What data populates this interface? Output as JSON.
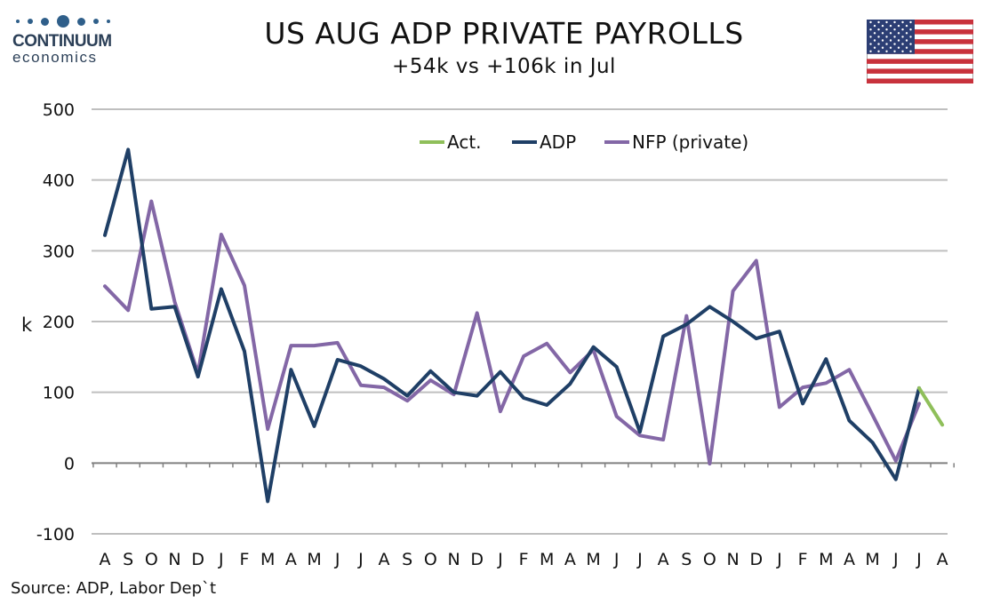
{
  "logo": {
    "line1": "CONTINUUM",
    "line2": "economics"
  },
  "title": "US AUG ADP PRIVATE PAYROLLS",
  "subtitle": "+54k vs +106k in Jul",
  "source": "Source: ADP, Labor Dep`t",
  "colors": {
    "act": "#8fbf5a",
    "adp": "#1f3f66",
    "nfp": "#8367a6",
    "grid": "#bfbfbf",
    "axis": "#808080"
  },
  "chart_data": {
    "type": "line",
    "ylabel": "k",
    "ylim": [
      -100,
      500
    ],
    "yticks": [
      -100,
      0,
      100,
      200,
      300,
      400,
      500
    ],
    "grid": true,
    "legend_position": "top-right",
    "categories": [
      "A",
      "S",
      "O",
      "N",
      "D",
      "J",
      "F",
      "M",
      "A",
      "M",
      "J",
      "J",
      "A",
      "S",
      "O",
      "N",
      "D",
      "J",
      "F",
      "M",
      "A",
      "M",
      "J",
      "J",
      "A",
      "S",
      "O",
      "N",
      "D",
      "J",
      "F",
      "M",
      "A",
      "M",
      "J",
      "J",
      "A"
    ],
    "series": [
      {
        "name": "Act.",
        "color_key": "act",
        "values": [
          null,
          null,
          null,
          null,
          null,
          null,
          null,
          null,
          null,
          null,
          null,
          null,
          null,
          null,
          null,
          null,
          null,
          null,
          null,
          null,
          null,
          null,
          null,
          null,
          null,
          null,
          null,
          null,
          null,
          null,
          null,
          null,
          null,
          null,
          null,
          106,
          54
        ]
      },
      {
        "name": "ADP",
        "color_key": "adp",
        "values": [
          322,
          443,
          218,
          221,
          122,
          246,
          158,
          -54,
          132,
          52,
          146,
          137,
          119,
          95,
          130,
          100,
          95,
          129,
          92,
          82,
          112,
          164,
          136,
          44,
          179,
          196,
          221,
          200,
          176,
          186,
          84,
          147,
          60,
          29,
          -23,
          106,
          null
        ]
      },
      {
        "name": "NFP (private)",
        "color_key": "nfp",
        "values": [
          250,
          216,
          370,
          228,
          127,
          323,
          251,
          48,
          166,
          166,
          170,
          110,
          107,
          88,
          117,
          97,
          212,
          73,
          151,
          169,
          128,
          160,
          66,
          39,
          33,
          208,
          -1,
          243,
          286,
          79,
          107,
          113,
          132,
          68,
          3,
          84,
          null
        ]
      }
    ]
  }
}
